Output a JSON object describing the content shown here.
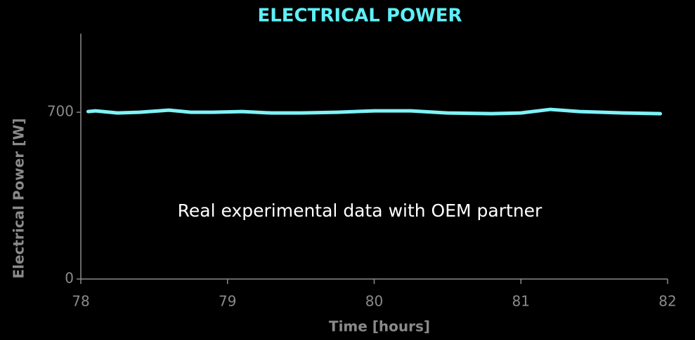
{
  "chart_data": {
    "type": "line",
    "title": "ELECTRICAL POWER",
    "xlabel": "Time [hours]",
    "ylabel": "Electrical Power [W]",
    "annotation": "Real experimental data with OEM partner",
    "x": [
      78.05,
      78.1,
      78.25,
      78.4,
      78.6,
      78.75,
      78.9,
      79.1,
      79.3,
      79.5,
      79.75,
      80.0,
      80.25,
      80.5,
      80.8,
      81.0,
      81.2,
      81.4,
      81.7,
      81.95
    ],
    "series": [
      {
        "name": "Electrical Power",
        "color": "#7ef3f7",
        "values": [
          703,
          706,
          697,
          700,
          709,
          700,
          700,
          703,
          697,
          697,
          700,
          706,
          706,
          697,
          694,
          697,
          712,
          703,
          697,
          694
        ]
      }
    ],
    "xlim": [
      78,
      82
    ],
    "xticks": [
      78,
      79,
      80,
      81,
      82
    ],
    "ylim": [
      0,
      1030
    ],
    "yticks": [
      0,
      700
    ]
  }
}
